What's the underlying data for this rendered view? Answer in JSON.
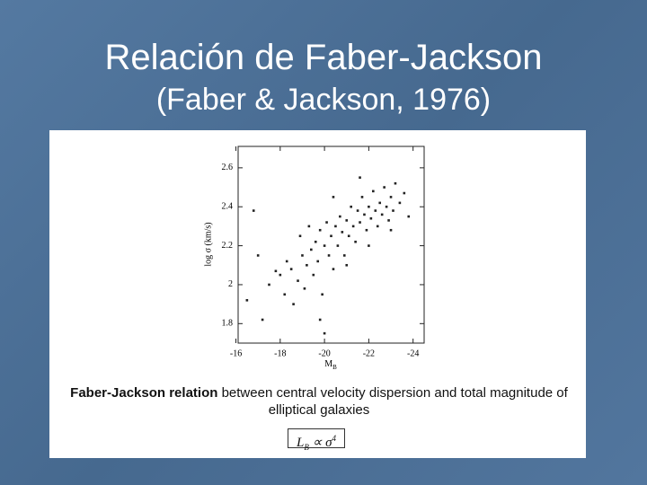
{
  "chart_data": {
    "type": "scatter",
    "title": "Relación de Faber-Jackson",
    "subtitle": "(Faber & Jackson, 1976)",
    "x_label": [
      "M",
      "B"
    ],
    "y_label": "log σ (km/s)",
    "caption_bold": "Faber-Jackson relation",
    "caption": " between central velocity dispersion and total magnitude of elliptical galaxies",
    "formula": [
      "L",
      "B",
      " ∝ σ",
      "4"
    ],
    "color": "#222222",
    "xlim": [
      -16.1,
      -24.5
    ],
    "xticks": [
      -16,
      -18,
      -20,
      -22,
      -24
    ],
    "ylim": [
      1.7,
      2.71
    ],
    "yticks": [
      1.8,
      2,
      2.2,
      2.4,
      2.6
    ],
    "x": [
      -16.5,
      -16.8,
      -17.0,
      -17.2,
      -17.5,
      -17.8,
      -18.0,
      -18.2,
      -18.3,
      -18.5,
      -18.6,
      -18.8,
      -18.9,
      -19.0,
      -19.1,
      -19.2,
      -19.3,
      -19.4,
      -19.5,
      -19.6,
      -19.7,
      -19.8,
      -19.9,
      -20.0,
      -20.1,
      -20.2,
      -20.3,
      -20.4,
      -20.5,
      -20.6,
      -20.7,
      -20.8,
      -20.9,
      -21.0,
      -21.1,
      -21.2,
      -21.3,
      -21.4,
      -21.5,
      -21.6,
      -21.7,
      -21.8,
      -21.9,
      -22.0,
      -22.1,
      -22.2,
      -22.3,
      -22.4,
      -22.5,
      -22.6,
      -22.7,
      -22.8,
      -22.9,
      -23.0,
      -23.1,
      -23.2,
      -23.4,
      -23.6,
      -23.8,
      -21.6,
      -20.4,
      -19.8,
      -21.0,
      -22.0,
      -20.0,
      -23.0
    ],
    "y": [
      1.92,
      2.38,
      2.15,
      1.82,
      2.0,
      2.07,
      2.05,
      1.95,
      2.12,
      2.08,
      1.9,
      2.02,
      2.25,
      2.15,
      1.98,
      2.1,
      2.3,
      2.18,
      2.05,
      2.22,
      2.12,
      2.28,
      1.95,
      2.2,
      2.32,
      2.15,
      2.25,
      2.08,
      2.3,
      2.2,
      2.35,
      2.27,
      2.15,
      2.33,
      2.25,
      2.4,
      2.3,
      2.22,
      2.38,
      2.32,
      2.45,
      2.36,
      2.28,
      2.4,
      2.34,
      2.48,
      2.38,
      2.3,
      2.42,
      2.36,
      2.5,
      2.4,
      2.33,
      2.45,
      2.38,
      2.52,
      2.42,
      2.47,
      2.35,
      2.55,
      2.45,
      1.82,
      2.1,
      2.2,
      1.75,
      2.28
    ]
  }
}
